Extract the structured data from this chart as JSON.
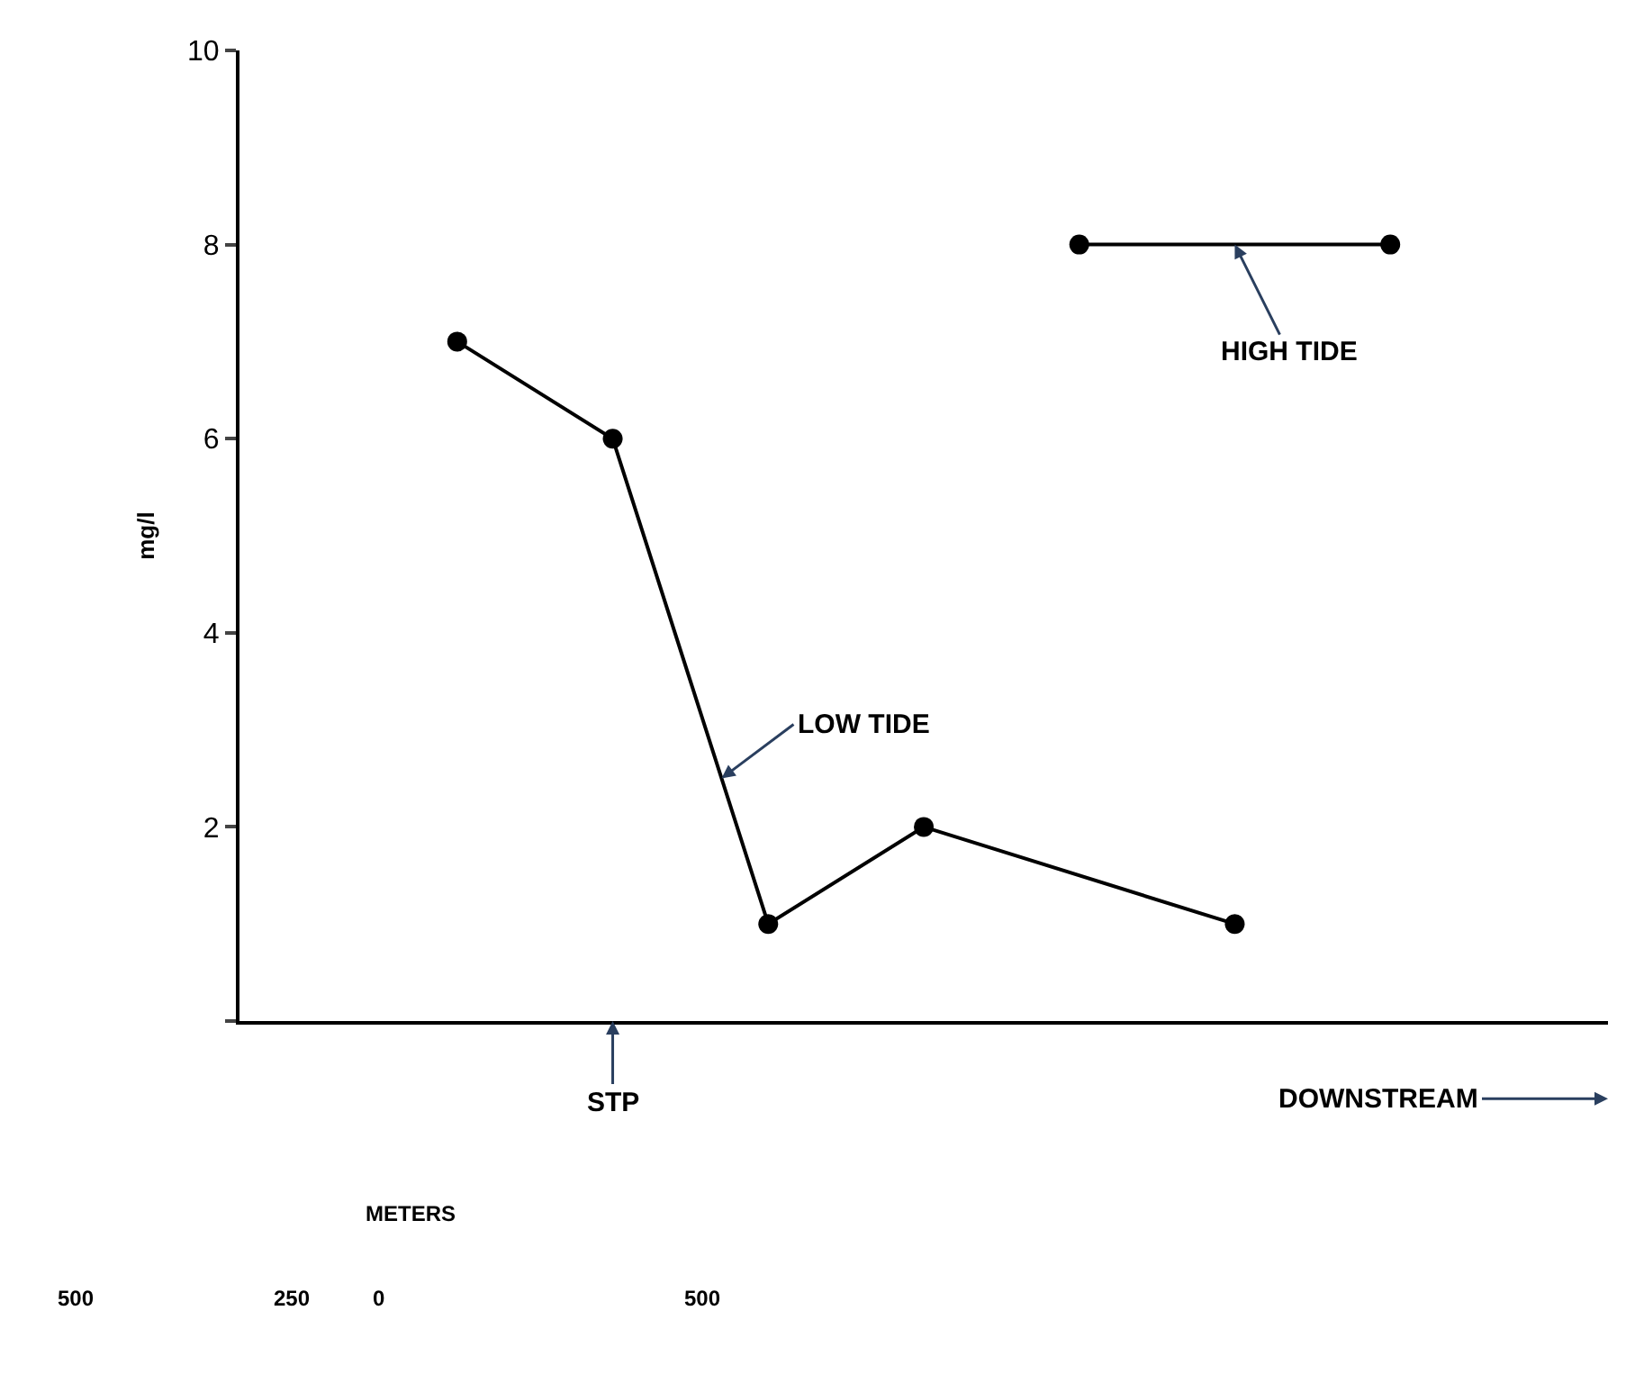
{
  "chart_data": {
    "type": "line",
    "ylabel": "mg/l",
    "categories": [
      null,
      null,
      null,
      null,
      null,
      null,
      null
    ],
    "series": [
      {
        "name": "LOW TIDE",
        "color": "#000000",
        "values": [
          7,
          6,
          1,
          2,
          null,
          1,
          null
        ]
      },
      {
        "name": "HIGH TIDE",
        "color": "#000000",
        "values": [
          null,
          null,
          null,
          null,
          8,
          null,
          8
        ]
      }
    ],
    "ylim": [
      0,
      10
    ],
    "yticks": [
      {
        "value": 0,
        "label": null
      },
      2,
      4,
      6,
      8,
      10
    ],
    "legend": false,
    "marker": "circle",
    "line_style": "solid",
    "annotations": [
      "STP",
      "DOWNSTREAM",
      "METERS",
      "500",
      "250",
      "0",
      "500"
    ]
  }
}
